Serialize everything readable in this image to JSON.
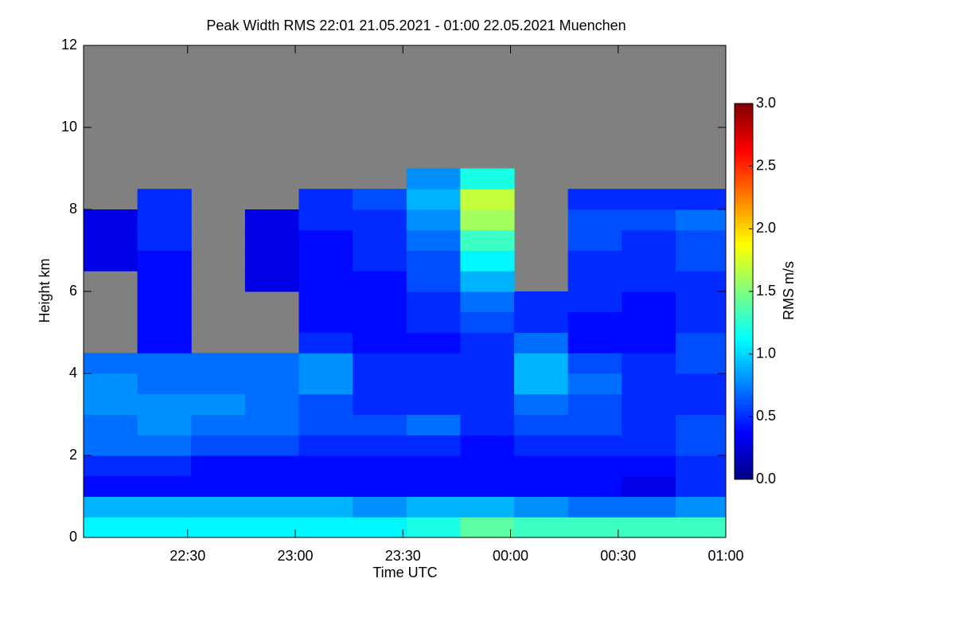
{
  "chart_data": {
    "type": "heatmap",
    "title": "Peak Width RMS   22:01 21.05.2021 - 01:00 22.05.2021 Muenchen",
    "x_label": "Time UTC",
    "y_label": "Height km",
    "colorbar_label": "RMS m/s",
    "missing_color": "#808080",
    "colormap": "jet",
    "xlim": [
      22.0167,
      25
    ],
    "xticks": [
      {
        "value": 22.5,
        "label": "22:30"
      },
      {
        "value": 23,
        "label": "23:00"
      },
      {
        "value": 23.5,
        "label": "23:30"
      },
      {
        "value": 24,
        "label": "00:00"
      },
      {
        "value": 24.5,
        "label": "00:30"
      },
      {
        "value": 25,
        "label": "01:00"
      }
    ],
    "ylim": [
      0,
      12
    ],
    "yticks": [
      0,
      2,
      4,
      6,
      8,
      10,
      12
    ],
    "clim": [
      0,
      3
    ],
    "cticks": [
      {
        "value": 0,
        "label": "0.0"
      },
      {
        "value": 0.5,
        "label": "0.5"
      },
      {
        "value": 1,
        "label": "1.0"
      },
      {
        "value": 1.5,
        "label": "1.5"
      },
      {
        "value": 2,
        "label": "2.0"
      },
      {
        "value": 2.5,
        "label": "2.5"
      },
      {
        "value": 3,
        "label": "3.0"
      }
    ],
    "x": [
      22.0167,
      22.2667,
      22.5167,
      22.7667,
      23.0167,
      23.2667,
      23.5167,
      23.7667,
      24.0167,
      24.2667,
      24.5167,
      24.7667
    ],
    "y": [
      0,
      0.5,
      1,
      1.5,
      2,
      2.5,
      3,
      3.5,
      4,
      4.5,
      5,
      5.5,
      6,
      6.5,
      7,
      7.5,
      8,
      8.5
    ],
    "y_top": 9,
    "values": [
      [
        1.1,
        1.1,
        1.1,
        1.1,
        1.1,
        1.1,
        1.2,
        1.4,
        1.3,
        1.3,
        1.3,
        1.3
      ],
      [
        0.9,
        0.9,
        0.9,
        0.9,
        0.9,
        0.8,
        0.9,
        0.9,
        0.8,
        0.7,
        0.7,
        0.8
      ],
      [
        0.4,
        0.4,
        0.4,
        0.4,
        0.4,
        0.4,
        0.4,
        0.4,
        0.4,
        0.4,
        0.3,
        0.5
      ],
      [
        0.5,
        0.5,
        0.4,
        0.4,
        0.4,
        0.4,
        0.4,
        0.4,
        0.4,
        0.4,
        0.4,
        0.5
      ],
      [
        0.7,
        0.7,
        0.6,
        0.6,
        0.5,
        0.5,
        0.5,
        0.4,
        0.5,
        0.5,
        0.5,
        0.6
      ],
      [
        0.7,
        0.8,
        0.7,
        0.7,
        0.6,
        0.6,
        0.7,
        0.5,
        0.6,
        0.6,
        0.5,
        0.6
      ],
      [
        0.8,
        0.8,
        0.8,
        0.7,
        0.6,
        0.5,
        0.5,
        0.5,
        0.7,
        0.6,
        0.5,
        0.5
      ],
      [
        0.8,
        0.7,
        0.7,
        0.7,
        0.8,
        0.5,
        0.5,
        0.5,
        0.9,
        0.7,
        0.5,
        0.5
      ],
      [
        0.7,
        0.7,
        0.7,
        0.7,
        0.8,
        0.5,
        0.5,
        0.5,
        0.9,
        0.6,
        0.5,
        0.6
      ],
      [
        null,
        0.4,
        null,
        null,
        0.5,
        0.4,
        0.4,
        0.5,
        0.7,
        0.4,
        0.4,
        0.6
      ],
      [
        null,
        0.4,
        null,
        null,
        0.4,
        0.4,
        0.5,
        0.6,
        0.5,
        0.4,
        0.4,
        0.5
      ],
      [
        null,
        0.4,
        null,
        null,
        0.4,
        0.4,
        0.5,
        0.7,
        0.5,
        0.5,
        0.4,
        0.5
      ],
      [
        null,
        0.4,
        null,
        0.3,
        0.4,
        0.4,
        0.6,
        0.9,
        null,
        0.5,
        0.5,
        0.5
      ],
      [
        0.3,
        0.4,
        null,
        0.3,
        0.4,
        0.5,
        0.6,
        1.1,
        null,
        0.5,
        0.5,
        0.6
      ],
      [
        0.3,
        0.5,
        null,
        0.3,
        0.4,
        0.5,
        0.7,
        1.3,
        null,
        0.6,
        0.5,
        0.6
      ],
      [
        0.3,
        0.5,
        null,
        0.3,
        0.5,
        0.5,
        0.8,
        1.6,
        null,
        0.6,
        0.6,
        0.7
      ],
      [
        null,
        0.5,
        null,
        null,
        0.5,
        0.6,
        0.9,
        1.7,
        null,
        0.5,
        0.5,
        0.5
      ],
      [
        null,
        null,
        null,
        null,
        null,
        null,
        0.8,
        1.2,
        null,
        null,
        null,
        null
      ]
    ]
  }
}
